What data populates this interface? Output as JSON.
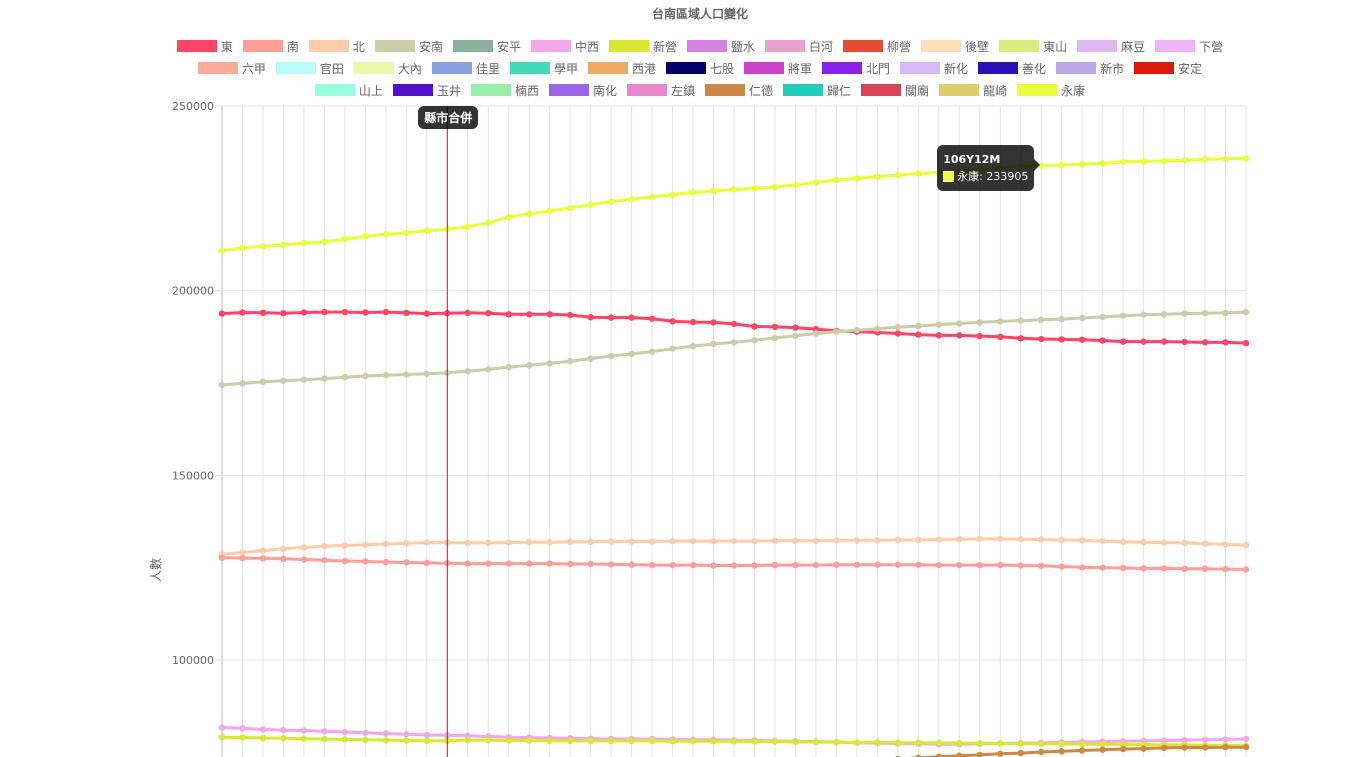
{
  "chart_data": {
    "type": "line",
    "title": "台南區域人口變化",
    "ylabel": "人數",
    "xlabel": "",
    "ylim": [
      77000,
      250000
    ],
    "yticks": [
      100000,
      150000,
      200000,
      250000
    ],
    "legend_position": "top",
    "grid": true,
    "legend": [
      {
        "name": "東",
        "color": "#ff4466"
      },
      {
        "name": "南",
        "color": "#ff9e99"
      },
      {
        "name": "北",
        "color": "#ffccaa"
      },
      {
        "name": "安南",
        "color": "#cccca8"
      },
      {
        "name": "安平",
        "color": "#88b09a"
      },
      {
        "name": "中西",
        "color": "#f0a8e8"
      },
      {
        "name": "新營",
        "color": "#d8e830"
      },
      {
        "name": "鹽水",
        "color": "#d084e0"
      },
      {
        "name": "白河",
        "color": "#e8a0cc"
      },
      {
        "name": "柳營",
        "color": "#e84c30"
      },
      {
        "name": "後壁",
        "color": "#ffddb8"
      },
      {
        "name": "東山",
        "color": "#d8ee7c"
      },
      {
        "name": "麻豆",
        "color": "#ddb8ee"
      },
      {
        "name": "下營",
        "color": "#eeb4f8"
      },
      {
        "name": "六甲",
        "color": "#ffaa99"
      },
      {
        "name": "官田",
        "color": "#b8fcfc"
      },
      {
        "name": "大內",
        "color": "#e8f8a8"
      },
      {
        "name": "佳里",
        "color": "#88a0e0"
      },
      {
        "name": "學甲",
        "color": "#44d8bc"
      },
      {
        "name": "西港",
        "color": "#eeaa66"
      },
      {
        "name": "七股",
        "color": "#000066"
      },
      {
        "name": "將軍",
        "color": "#cc44cc"
      },
      {
        "name": "北門",
        "color": "#8822e8"
      },
      {
        "name": "新化",
        "color": "#d8b8f8"
      },
      {
        "name": "善化",
        "color": "#2a10b8"
      },
      {
        "name": "新市",
        "color": "#bca8e8"
      },
      {
        "name": "安定",
        "color": "#dd1a0a"
      },
      {
        "name": "山上",
        "color": "#99ffdd"
      },
      {
        "name": "玉井",
        "color": "#5010cc"
      },
      {
        "name": "楠西",
        "color": "#99eeaa"
      },
      {
        "name": "南化",
        "color": "#9966e8"
      },
      {
        "name": "左鎮",
        "color": "#e888cc"
      },
      {
        "name": "仁德",
        "color": "#cc8844"
      },
      {
        "name": "歸仁",
        "color": "#22ccbb"
      },
      {
        "name": "關廟",
        "color": "#d84455"
      },
      {
        "name": "龍崎",
        "color": "#e0cc70"
      },
      {
        "name": "永康",
        "color": "#e8ff3a"
      }
    ],
    "series": [
      {
        "name": "永康",
        "color": "#e8ff3a",
        "values": [
          210800,
          211600,
          212000,
          212400,
          212900,
          213200,
          214000,
          214700,
          215300,
          215700,
          216200,
          216600,
          217300,
          218400,
          219900,
          220800,
          221600,
          222400,
          223300,
          224100,
          224800,
          225400,
          226000,
          226600,
          227000,
          227400,
          227700,
          228100,
          228600,
          229300,
          230000,
          230400,
          230900,
          231300,
          231700,
          232100,
          232400,
          232800,
          233200,
          233600,
          233905,
          234000,
          234200,
          234500,
          234900,
          235000,
          235100,
          235300,
          235600,
          235700,
          235800
        ]
      },
      {
        "name": "東",
        "color": "#ff4466",
        "values": [
          193800,
          194100,
          194000,
          193900,
          194100,
          194200,
          194200,
          194100,
          194200,
          194000,
          193800,
          193900,
          194000,
          193900,
          193600,
          193600,
          193600,
          193400,
          192800,
          192700,
          192700,
          192400,
          191700,
          191500,
          191400,
          191000,
          190300,
          190200,
          190000,
          189600,
          189100,
          188900,
          188700,
          188400,
          188100,
          187900,
          187900,
          187700,
          187500,
          187100,
          186900,
          186800,
          186700,
          186500,
          186200,
          186200,
          186200,
          186100,
          186000,
          186000,
          185800
        ]
      },
      {
        "name": "安南",
        "color": "#cccca8",
        "values": [
          174500,
          174900,
          175300,
          175600,
          175900,
          176200,
          176600,
          176900,
          177100,
          177300,
          177500,
          177800,
          178200,
          178700,
          179300,
          179800,
          180300,
          180900,
          181600,
          182300,
          182900,
          183500,
          184300,
          185000,
          185600,
          186000,
          186600,
          187200,
          187800,
          188400,
          188900,
          189300,
          189700,
          190100,
          190400,
          190800,
          191100,
          191400,
          191700,
          191900,
          192100,
          192300,
          192600,
          192900,
          193200,
          193500,
          193600,
          193800,
          193900,
          194000,
          194200
        ]
      },
      {
        "name": "北",
        "color": "#ffccaa",
        "values": [
          128600,
          129100,
          129600,
          130100,
          130500,
          130800,
          131000,
          131200,
          131400,
          131600,
          131800,
          131800,
          131700,
          131700,
          131800,
          131900,
          131900,
          132000,
          132000,
          132100,
          132100,
          132100,
          132200,
          132200,
          132200,
          132200,
          132200,
          132300,
          132300,
          132300,
          132400,
          132400,
          132400,
          132500,
          132500,
          132600,
          132700,
          132800,
          132800,
          132700,
          132600,
          132500,
          132400,
          132200,
          132000,
          131900,
          131800,
          131700,
          131500,
          131300,
          131100
        ]
      },
      {
        "name": "南",
        "color": "#ff9e99",
        "values": [
          127700,
          127600,
          127500,
          127400,
          127200,
          127000,
          126800,
          126700,
          126500,
          126400,
          126300,
          126200,
          126100,
          126100,
          126100,
          126100,
          126100,
          126000,
          126000,
          125900,
          125800,
          125700,
          125700,
          125700,
          125600,
          125600,
          125600,
          125700,
          125700,
          125700,
          125800,
          125800,
          125800,
          125800,
          125800,
          125700,
          125700,
          125700,
          125700,
          125600,
          125500,
          125300,
          125100,
          125000,
          124900,
          124800,
          124800,
          124700,
          124700,
          124600,
          124500
        ]
      },
      {
        "name": "中西",
        "color": "#f0a8e8",
        "values": [
          81700,
          81500,
          81200,
          81000,
          80900,
          80700,
          80500,
          80300,
          80100,
          79900,
          79700,
          79600,
          79500,
          79300,
          79100,
          79000,
          78900,
          78800,
          78700,
          78600,
          78600,
          78600,
          78500,
          78400,
          78400,
          78300,
          78200,
          78100,
          78000,
          77900,
          77800,
          77600,
          77500,
          77400,
          77300,
          77200,
          77200,
          77300,
          77400,
          77500,
          77600,
          77700,
          77800,
          77900,
          78000,
          78100,
          78200,
          78300,
          78400,
          78500,
          78600
        ]
      },
      {
        "name": "新營",
        "color": "#d8e830",
        "values": [
          79100,
          79000,
          78900,
          78800,
          78700,
          78600,
          78500,
          78400,
          78300,
          78200,
          78100,
          78100,
          78300,
          78300,
          78200,
          78200,
          78100,
          78100,
          78100,
          78100,
          78100,
          78100,
          78000,
          78000,
          78000,
          78000,
          77900,
          77900,
          77800,
          77800,
          77700,
          77700,
          77700,
          77600,
          77600,
          77600,
          77500,
          77500,
          77400,
          77400,
          77300,
          77300,
          77200,
          77200,
          77100,
          77100,
          77000,
          77000,
          76900,
          76900,
          76800
        ]
      },
      {
        "name": "仁德",
        "color": "#cc8844",
        "values": [
          null,
          null,
          null,
          null,
          null,
          null,
          null,
          null,
          null,
          null,
          null,
          null,
          null,
          null,
          null,
          null,
          null,
          null,
          null,
          null,
          null,
          null,
          null,
          null,
          null,
          null,
          null,
          70500,
          71000,
          71500,
          72200,
          72500,
          72900,
          73200,
          73500,
          73800,
          74100,
          74300,
          74600,
          74800,
          75100,
          75300,
          75500,
          75700,
          75900,
          76000,
          76200,
          76300,
          76300,
          76400,
          76400
        ]
      }
    ],
    "annotation": {
      "label": "縣市合併",
      "index": 11
    },
    "tooltip": {
      "title": "106Y12M",
      "series": "永康",
      "value": "永康: 233905",
      "index": 40
    }
  }
}
